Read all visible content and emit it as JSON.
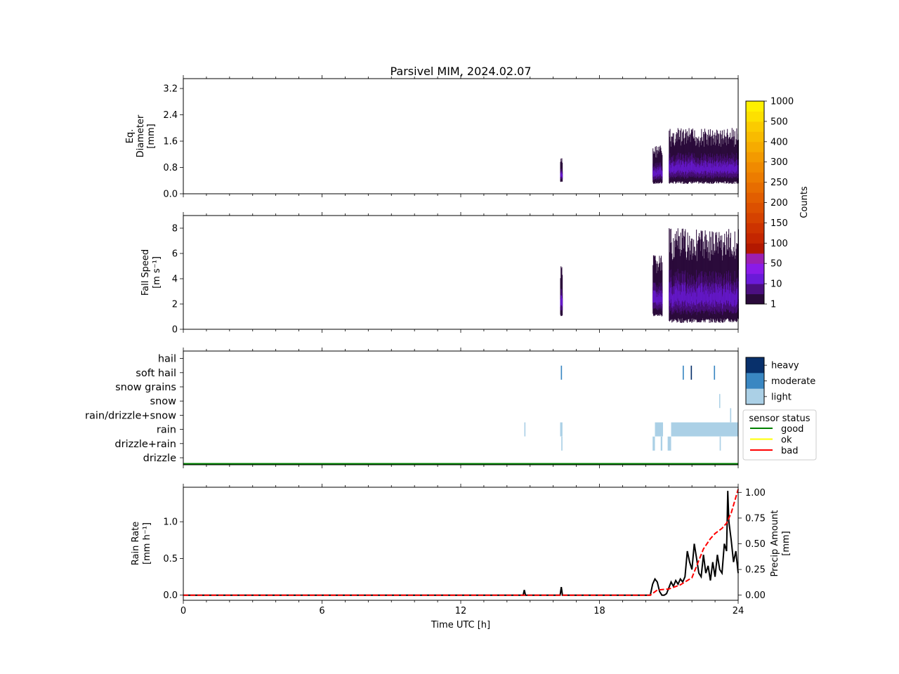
{
  "figure_title": "Parsivel MIM, 2024.02.07",
  "chart_data": [
    {
      "type": "heatmap",
      "name": "diameter",
      "ylabel_lines": [
        "Eq.",
        "Diameter",
        "[mm]"
      ],
      "xlim": [
        0,
        24
      ],
      "ylim": [
        0,
        3.5
      ],
      "yticks": [
        0.0,
        0.8,
        1.6,
        2.4,
        3.2
      ],
      "ytick_labels": [
        "0.0",
        "0.8",
        "1.6",
        "2.4",
        "3.2"
      ],
      "events": [
        {
          "t0": 16.3,
          "t1": 16.4,
          "lo": 0.35,
          "hi": 1.1
        },
        {
          "t0": 20.3,
          "t1": 20.7,
          "lo": 0.3,
          "hi": 1.5
        },
        {
          "t0": 21.0,
          "t1": 24.0,
          "lo": 0.3,
          "hi": 2.0
        }
      ]
    },
    {
      "type": "heatmap",
      "name": "fall_speed",
      "ylabel_lines": [
        "Fall Speed",
        "[m s⁻¹]"
      ],
      "xlim": [
        0,
        24
      ],
      "ylim": [
        0,
        9
      ],
      "yticks": [
        0,
        2,
        4,
        6,
        8
      ],
      "ytick_labels": [
        "0",
        "2",
        "4",
        "6",
        "8"
      ],
      "events": [
        {
          "t0": 16.3,
          "t1": 16.4,
          "lo": 1.0,
          "hi": 5.0
        },
        {
          "t0": 20.3,
          "t1": 20.7,
          "lo": 1.0,
          "hi": 6.0
        },
        {
          "t0": 21.0,
          "t1": 24.0,
          "lo": 0.5,
          "hi": 8.0
        }
      ]
    },
    {
      "type": "bar",
      "name": "precip_type",
      "xlim": [
        0,
        24
      ],
      "categories": [
        "drizzle",
        "drizzle+rain",
        "rain",
        "rain/drizzle+snow",
        "snow",
        "snow grains",
        "soft hail",
        "hail"
      ],
      "segments": [
        {
          "cat": "rain",
          "t0": 14.75,
          "t1": 14.8,
          "level": "light"
        },
        {
          "cat": "rain",
          "t0": 16.3,
          "t1": 16.4,
          "level": "light"
        },
        {
          "cat": "rain",
          "t0": 20.4,
          "t1": 20.75,
          "level": "light"
        },
        {
          "cat": "rain",
          "t0": 21.1,
          "t1": 24.0,
          "level": "light"
        },
        {
          "cat": "drizzle+rain",
          "t0": 20.3,
          "t1": 20.4,
          "level": "light"
        },
        {
          "cat": "drizzle+rain",
          "t0": 20.65,
          "t1": 20.72,
          "level": "light"
        },
        {
          "cat": "drizzle+rain",
          "t0": 20.95,
          "t1": 21.1,
          "level": "light"
        },
        {
          "cat": "drizzle+rain",
          "t0": 23.2,
          "t1": 23.25,
          "level": "light"
        },
        {
          "cat": "drizzle+rain",
          "t0": 16.35,
          "t1": 16.4,
          "level": "light"
        },
        {
          "cat": "soft hail",
          "t0": 16.33,
          "t1": 16.38,
          "level": "moderate"
        },
        {
          "cat": "soft hail",
          "t0": 21.6,
          "t1": 21.65,
          "level": "moderate"
        },
        {
          "cat": "soft hail",
          "t0": 21.95,
          "t1": 22.0,
          "level": "heavy"
        },
        {
          "cat": "soft hail",
          "t0": 22.95,
          "t1": 23.0,
          "level": "moderate"
        },
        {
          "cat": "snow",
          "t0": 23.18,
          "t1": 23.22,
          "level": "light"
        },
        {
          "cat": "rain/drizzle+snow",
          "t0": 23.65,
          "t1": 23.7,
          "level": "light"
        }
      ],
      "intensity_legend": [
        "heavy",
        "moderate",
        "light"
      ],
      "intensity_colors": [
        "#08306b",
        "#3a87c2",
        "#abd0e6"
      ],
      "sensor_status_title": "sensor status",
      "sensor_status": [
        {
          "label": "good",
          "color": "#008000"
        },
        {
          "label": "ok",
          "color": "#ffff00"
        },
        {
          "label": "bad",
          "color": "#ff0000"
        }
      ],
      "status_line": "good"
    },
    {
      "type": "line",
      "name": "rain_rate",
      "xlabel": "Time UTC [h]",
      "ylabel_lines": [
        "Rain Rate",
        "[mm h⁻¹]"
      ],
      "y2label_lines": [
        "Precip Amount",
        "[mm]"
      ],
      "xlim": [
        0,
        24
      ],
      "xticks": [
        0,
        6,
        12,
        18,
        24
      ],
      "ylim": [
        -0.07,
        1.47
      ],
      "yticks": [
        0.0,
        0.5,
        1.0
      ],
      "ytick_labels": [
        "0.0",
        "0.5",
        "1.0"
      ],
      "y2lim": [
        -0.05,
        1.05
      ],
      "y2ticks": [
        0.0,
        0.25,
        0.5,
        0.75,
        1.0
      ],
      "y2tick_labels": [
        "0.00",
        "0.25",
        "0.50",
        "0.75",
        "1.00"
      ],
      "series": [
        {
          "color": "#000000",
          "style": "solid",
          "axis": "left",
          "x": [
            0,
            14.7,
            14.75,
            14.8,
            16.3,
            16.35,
            16.4,
            20.2,
            20.3,
            20.4,
            20.5,
            20.6,
            20.7,
            20.8,
            20.9,
            21.0,
            21.1,
            21.2,
            21.3,
            21.4,
            21.5,
            21.6,
            21.7,
            21.8,
            21.9,
            22.0,
            22.1,
            22.2,
            22.3,
            22.4,
            22.5,
            22.6,
            22.7,
            22.8,
            22.9,
            23.0,
            23.1,
            23.2,
            23.3,
            23.4,
            23.5,
            23.55,
            23.6,
            23.7,
            23.8,
            23.9,
            24.0
          ],
          "y": [
            0,
            0,
            0.07,
            0,
            0,
            0.11,
            0,
            0,
            0.15,
            0.22,
            0.18,
            0.05,
            0,
            0,
            0.02,
            0.1,
            0.18,
            0.12,
            0.2,
            0.15,
            0.22,
            0.18,
            0.25,
            0.6,
            0.45,
            0.35,
            0.7,
            0.5,
            0.3,
            0.25,
            0.55,
            0.3,
            0.4,
            0.2,
            0.45,
            0.25,
            0.55,
            0.35,
            0.3,
            0.7,
            0.6,
            1.42,
            1.0,
            0.75,
            0.45,
            0.6,
            0.3
          ]
        },
        {
          "color": "#ff0000",
          "style": "dashed",
          "axis": "right",
          "x": [
            0,
            20.2,
            20.5,
            21.0,
            21.5,
            22.0,
            22.5,
            22.8,
            23.0,
            23.3,
            23.5,
            23.7,
            24.0
          ],
          "y": [
            0,
            0,
            0.05,
            0.06,
            0.1,
            0.17,
            0.45,
            0.55,
            0.6,
            0.65,
            0.7,
            0.8,
            1.03
          ]
        }
      ]
    }
  ],
  "colorbar": {
    "label": "Counts",
    "tick_labels": [
      "1",
      "10",
      "50",
      "100",
      "150",
      "200",
      "250",
      "300",
      "400",
      "500",
      "1000"
    ],
    "colors": [
      "#2a0a3a",
      "#4b0f7f",
      "#6a1ad8",
      "#8a1be8",
      "#9c1fb0",
      "#b31800",
      "#c42600",
      "#cd3300",
      "#d54200",
      "#dc5000",
      "#e25e00",
      "#e76d00",
      "#ec7c00",
      "#f08a00",
      "#f39a00",
      "#f6ab00",
      "#f8bb00",
      "#fbcb00",
      "#fde000",
      "#fff000"
    ]
  }
}
